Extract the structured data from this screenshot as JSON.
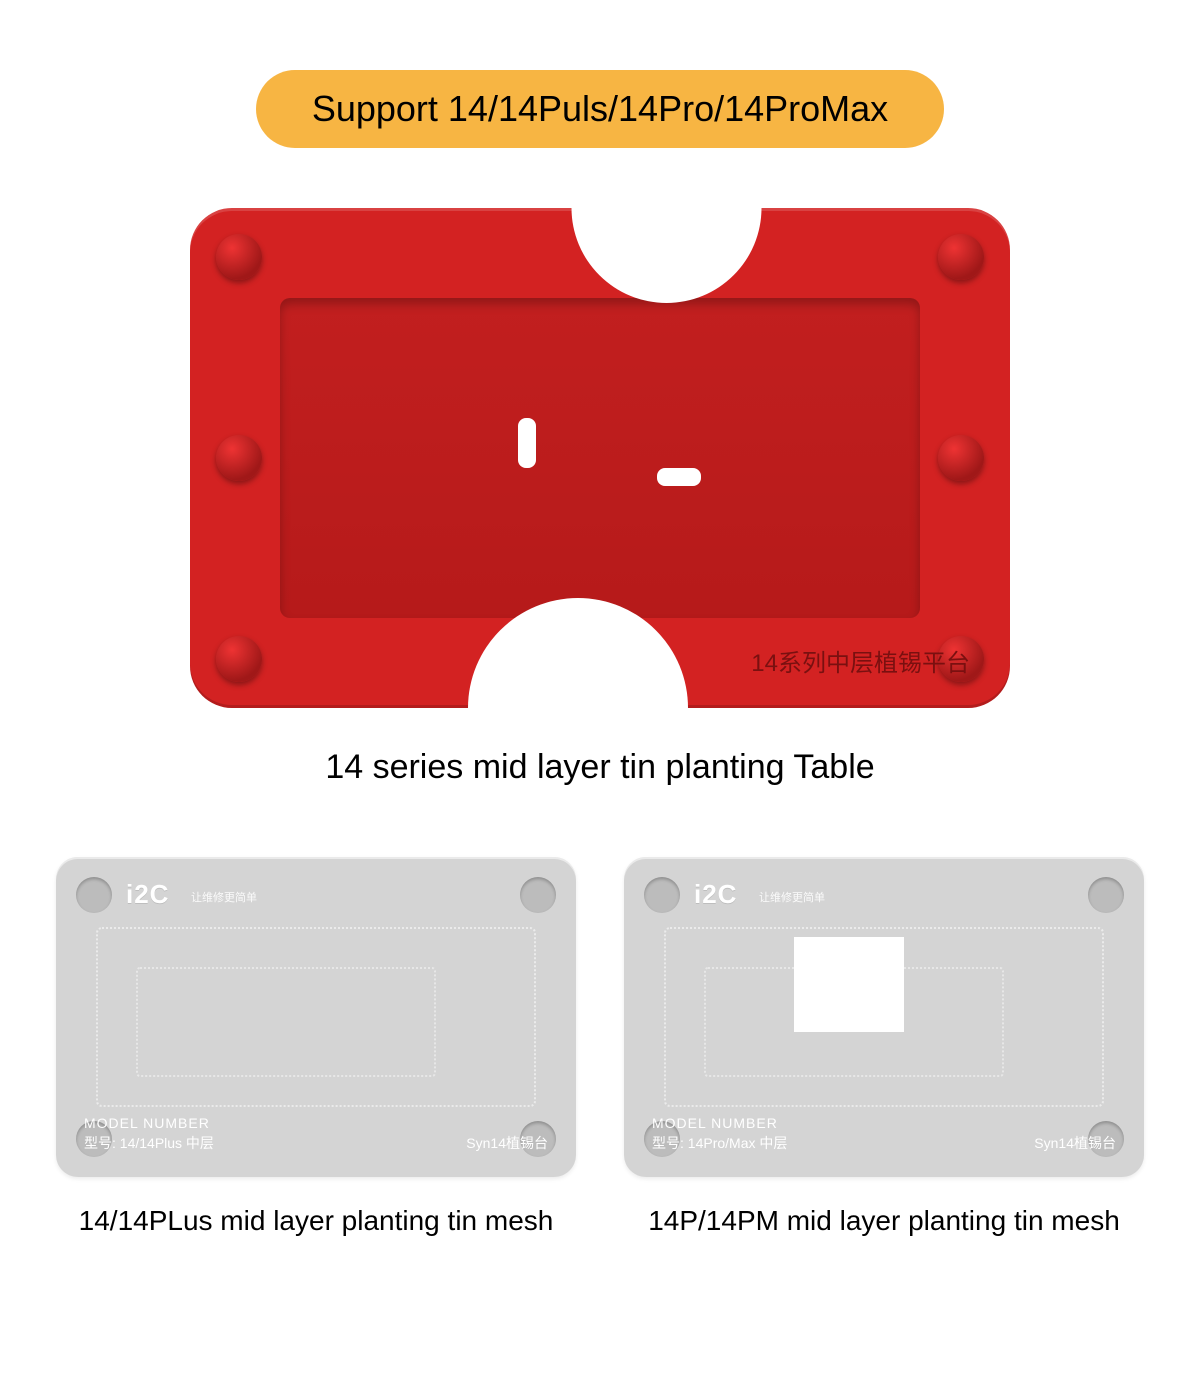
{
  "colors": {
    "pill_bg": "#f7b543",
    "plate_bg": "#d32222",
    "mesh_bg": "#d4d4d4",
    "text": "#000000",
    "etch_text": "#7a1010"
  },
  "header": {
    "pill_text": "Support 14/14Puls/14Pro/14ProMax"
  },
  "plate": {
    "etch_label": "14系列中层植锡平台",
    "caption": "14 series mid layer tin planting Table"
  },
  "meshes": [
    {
      "brand": "i2C",
      "brand_sub": "让维修更简单",
      "model_number_label": "MODEL NUMBER",
      "model": "型号: 14/14Plus 中层",
      "syn": "Syn14植锡台",
      "has_whitebox": false,
      "caption": "14/14PLus mid layer planting tin mesh"
    },
    {
      "brand": "i2C",
      "brand_sub": "让维修更简单",
      "model_number_label": "MODEL NUMBER",
      "model": "型号: 14Pro/Max 中层",
      "syn": "Syn14植锡台",
      "has_whitebox": true,
      "caption": "14P/14PM mid layer planting tin mesh"
    }
  ]
}
